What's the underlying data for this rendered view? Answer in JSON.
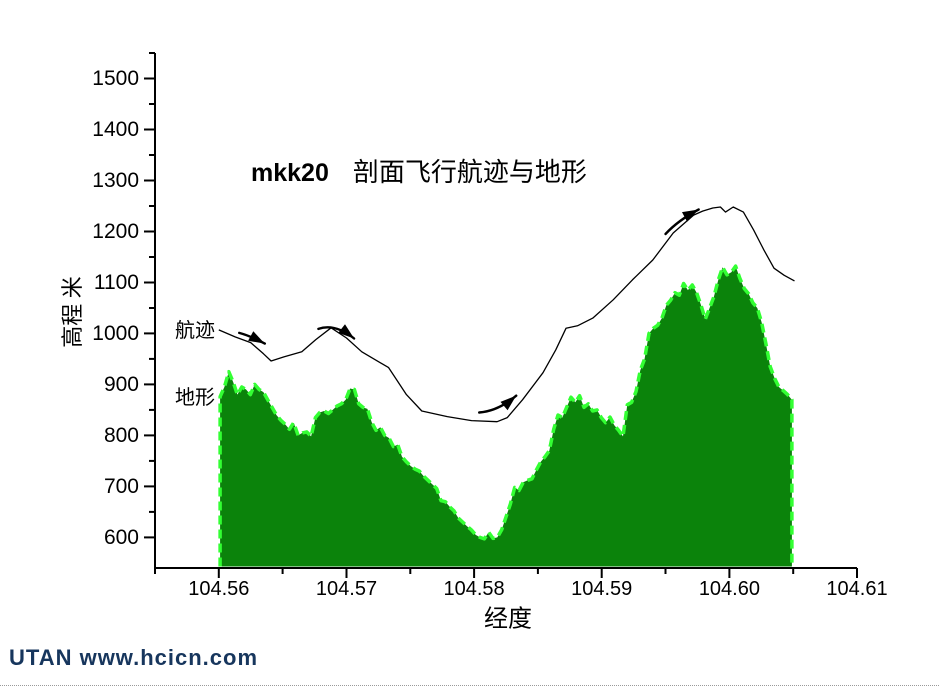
{
  "page": {
    "watermark_text": "UTAN  www.hcicn.com",
    "watermark_color": "#17365d",
    "background": "#ffffff"
  },
  "chart_data": {
    "type": "area",
    "title_prefix": "mkk20",
    "title": "剖面飞行航迹与地形",
    "xlabel": "经度",
    "ylabel": "高程 米",
    "xlim": [
      104.555,
      104.61
    ],
    "ylim": [
      540,
      1550
    ],
    "grid": false,
    "legend_position": "inline-left",
    "x_major_ticks": [
      104.56,
      104.57,
      104.58,
      104.59,
      104.6,
      104.61
    ],
    "x_minor_ticks": [
      104.555,
      104.565,
      104.575,
      104.585,
      104.595,
      104.605
    ],
    "y_major_ticks": [
      600,
      700,
      800,
      900,
      1000,
      1100,
      1200,
      1300,
      1400,
      1500
    ],
    "y_minor_ticks": [
      650,
      750,
      850,
      950,
      1050,
      1150,
      1250,
      1350,
      1450,
      1550
    ],
    "colors": {
      "terrain_fill": "#0b830b",
      "terrain_outline": "#33ff33",
      "track_line": "#000000",
      "axis": "#000000"
    },
    "series": [
      {
        "name": "航迹",
        "type": "line",
        "points": [
          [
            104.56,
            1007
          ],
          [
            104.5613,
            993
          ],
          [
            104.5625,
            982
          ],
          [
            104.5635,
            960
          ],
          [
            104.5641,
            946
          ],
          [
            104.5651,
            954
          ],
          [
            104.5665,
            964
          ],
          [
            104.5676,
            988
          ],
          [
            104.5688,
            1011
          ],
          [
            104.57,
            991
          ],
          [
            104.5712,
            964
          ],
          [
            104.5733,
            933
          ],
          [
            104.5747,
            880
          ],
          [
            104.5759,
            848
          ],
          [
            104.5779,
            837
          ],
          [
            104.5798,
            829
          ],
          [
            104.5818,
            827
          ],
          [
            104.5826,
            835
          ],
          [
            104.5838,
            870
          ],
          [
            104.5854,
            923
          ],
          [
            104.5864,
            968
          ],
          [
            104.5872,
            1010
          ],
          [
            104.5881,
            1015
          ],
          [
            104.5893,
            1030
          ],
          [
            104.5909,
            1066
          ],
          [
            104.5924,
            1105
          ],
          [
            104.594,
            1144
          ],
          [
            104.5956,
            1197
          ],
          [
            104.5972,
            1232
          ],
          [
            104.5979,
            1240
          ],
          [
            104.5987,
            1246
          ],
          [
            104.5993,
            1248
          ],
          [
            104.5997,
            1238
          ],
          [
            104.6003,
            1248
          ],
          [
            104.6011,
            1238
          ],
          [
            104.6019,
            1203
          ],
          [
            104.6027,
            1164
          ],
          [
            104.6035,
            1128
          ],
          [
            104.6043,
            1114
          ],
          [
            104.6051,
            1103
          ]
        ]
      },
      {
        "name": "地形",
        "type": "area",
        "lon_start": 104.5601,
        "lon_end": 104.6049,
        "alts": [
          876,
          895,
          925,
          905,
          880,
          895,
          890,
          880,
          900,
          890,
          885,
          870,
          855,
          840,
          830,
          822,
          812,
          825,
          800,
          805,
          807,
          798,
          835,
          845,
          848,
          843,
          850,
          858,
          862,
          870,
          892,
          890,
          862,
          855,
          852,
          826,
          810,
          816,
          800,
          795,
          778,
          782,
          758,
          748,
          740,
          734,
          730,
          720,
          712,
          704,
          696,
          672,
          670,
          660,
          652,
          638,
          630,
          622,
          615,
          605,
          600,
          597,
          610,
          598,
          600,
          615,
          640,
          665,
          698,
          692,
          708,
          712,
          715,
          732,
          748,
          758,
          770,
          812,
          840,
          835,
          855,
          875,
          865,
          878,
          855,
          862,
          848,
          850,
          835,
          825,
          836,
          820,
          810,
          798,
          860,
          865,
          886,
          928,
          950,
          1000,
          1010,
          1016,
          1030,
          1055,
          1065,
          1080,
          1075,
          1098,
          1085,
          1095,
          1080,
          1056,
          1028,
          1050,
          1072,
          1105,
          1130,
          1115,
          1120,
          1132,
          1108,
          1088,
          1078,
          1060,
          1050,
          1022,
          980,
          935,
          912,
          895,
          888,
          880,
          870
        ]
      }
    ],
    "annotations": [
      {
        "text": "航迹",
        "lon": 104.5566,
        "alt": 1012
      },
      {
        "text": "地形",
        "lon": 104.5566,
        "alt": 882
      }
    ],
    "arrows": [
      {
        "tail": [
          104.5616,
          1001
        ],
        "ctrl": [
          104.5625,
          995
        ],
        "head": [
          104.5636,
          980
        ]
      },
      {
        "tail": [
          104.5678,
          1009
        ],
        "ctrl": [
          104.5691,
          1020
        ],
        "head": [
          104.5706,
          990
        ]
      },
      {
        "tail": [
          104.5804,
          845
        ],
        "ctrl": [
          104.5819,
          848
        ],
        "head": [
          104.5833,
          878
        ]
      },
      {
        "tail": [
          104.595,
          1195
        ],
        "ctrl": [
          104.596,
          1222
        ],
        "head": [
          104.5976,
          1243
        ]
      }
    ]
  }
}
